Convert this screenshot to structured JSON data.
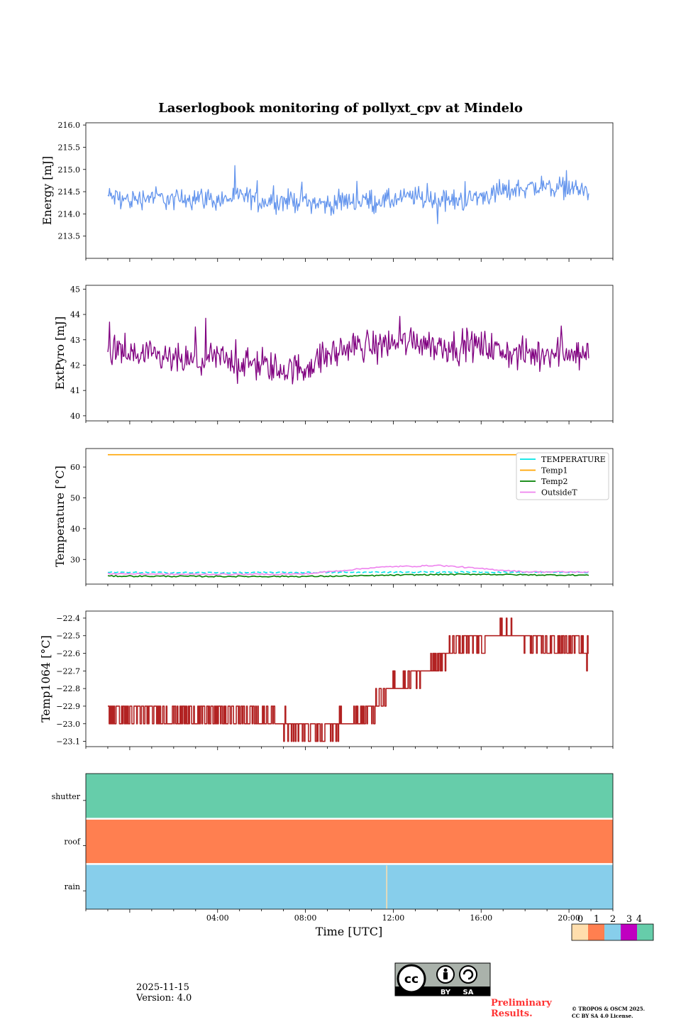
{
  "chart_data": {
    "type": "line",
    "title": "Laserlogbook monitoring of pollyxt_cpv at Mindelo",
    "xlabel": "Time [UTC]",
    "x_range_hours": [
      -2,
      22
    ],
    "x_tick_labels": [
      "04:00",
      "08:00",
      "12:00",
      "16:00",
      "20:00"
    ],
    "x_tick_hours": [
      4,
      8,
      12,
      16,
      20
    ],
    "panels": [
      {
        "id": "energy",
        "ylabel": "Energy [mJ]",
        "ylim": [
          213.0,
          216.05
        ],
        "yticks": [
          213.5,
          214.0,
          214.5,
          215.0,
          215.5,
          216.0
        ],
        "ytick_labels": [
          "213.5",
          "214.0",
          "214.5",
          "215.0",
          "215.5",
          "216.0"
        ],
        "series": [
          {
            "name": "Energy",
            "color": "#6495ed",
            "x": [
              -1.0,
              0,
              1,
              2,
              3,
              4,
              5,
              6,
              7,
              8,
              9,
              10,
              11,
              12,
              13,
              14,
              15,
              16,
              17,
              18,
              19,
              20,
              20.9
            ],
            "values": [
              214.4,
              214.3,
              214.4,
              214.3,
              214.4,
              214.3,
              214.4,
              214.3,
              214.3,
              214.3,
              214.2,
              214.3,
              214.3,
              214.3,
              214.4,
              214.3,
              214.3,
              214.4,
              214.5,
              214.6,
              214.6,
              214.6,
              214.5
            ],
            "noise_amplitude": 0.35
          }
        ]
      },
      {
        "id": "extpyro",
        "ylabel": "ExtPyro [mJ]",
        "ylim": [
          39.8,
          45.15
        ],
        "yticks": [
          40,
          41,
          42,
          43,
          44,
          45
        ],
        "ytick_labels": [
          "40",
          "41",
          "42",
          "43",
          "44",
          "45"
        ],
        "series": [
          {
            "name": "ExtPyro",
            "color": "#800080",
            "x": [
              -1.0,
              0,
              1,
              2,
              3,
              4,
              5,
              6,
              7,
              8,
              9,
              10,
              11,
              12,
              13,
              14,
              15,
              16,
              17,
              18,
              19,
              20,
              20.9
            ],
            "values": [
              42.6,
              42.4,
              42.3,
              42.2,
              42.1,
              42.3,
              42.1,
              42.0,
              41.8,
              41.9,
              42.4,
              42.7,
              42.8,
              42.9,
              43.0,
              42.8,
              42.7,
              42.8,
              42.5,
              42.4,
              42.5,
              42.6,
              42.4
            ],
            "noise_amplitude": 0.9
          }
        ]
      },
      {
        "id": "temperature",
        "ylabel": "Temperature [°C]",
        "ylim": [
          22,
          66
        ],
        "yticks": [
          30,
          40,
          50,
          60
        ],
        "ytick_labels": [
          "30",
          "40",
          "50",
          "60"
        ],
        "legend": [
          "TEMPERATURE",
          "Temp1",
          "Temp2",
          "OutsideT"
        ],
        "legend_position": "upper-right",
        "series": [
          {
            "name": "TEMPERATURE",
            "color": "#00e5e5",
            "dashed": true,
            "x": [
              -1.0,
              4,
              8,
              10,
              12,
              14,
              16,
              18,
              20.9
            ],
            "values": [
              25.8,
              25.7,
              25.8,
              25.8,
              25.9,
              25.9,
              25.9,
              25.8,
              25.8
            ]
          },
          {
            "name": "Temp1",
            "color": "#ffa500",
            "x": [
              -1.0,
              20.9
            ],
            "values": [
              64.0,
              64.0
            ]
          },
          {
            "name": "Temp2",
            "color": "#008000",
            "x": [
              -1.0,
              4,
              8,
              10,
              12,
              14,
              16,
              18,
              20.9
            ],
            "values": [
              24.6,
              24.5,
              24.5,
              24.6,
              24.9,
              25.1,
              25.2,
              25.0,
              24.9
            ]
          },
          {
            "name": "OutsideT",
            "color": "#ee82ee",
            "x": [
              -1.0,
              2,
              6,
              8,
              9,
              10,
              11,
              12,
              13,
              14,
              15,
              16,
              17,
              18,
              20.9
            ],
            "values": [
              25.4,
              25.2,
              25.2,
              25.3,
              26.0,
              26.6,
              27.3,
              27.7,
              27.8,
              28.1,
              27.6,
              27.0,
              26.5,
              26.0,
              25.9
            ]
          }
        ]
      },
      {
        "id": "temp1064",
        "ylabel": "Temp1064 [°C]",
        "ylim": [
          -23.13,
          -22.36
        ],
        "yticks": [
          -23.1,
          -23.0,
          -22.9,
          -22.8,
          -22.7,
          -22.6,
          -22.5,
          -22.4
        ],
        "ytick_labels": [
          "−23.1",
          "−23.0",
          "−22.9",
          "−22.8",
          "−22.7",
          "−22.6",
          "−22.5",
          "−22.4"
        ],
        "series": [
          {
            "name": "Temp1064",
            "color": "#b22222",
            "step": 0.1,
            "x": [
              -1.0,
              1,
              3,
              5,
              6,
              7,
              8,
              9,
              10,
              11,
              11.5,
              12,
              13,
              14,
              15,
              16,
              17,
              18,
              19,
              20,
              20.9
            ],
            "values": [
              -22.95,
              -22.95,
              -22.95,
              -22.95,
              -22.97,
              -23.0,
              -23.02,
              -23.02,
              -22.98,
              -22.93,
              -22.85,
              -22.8,
              -22.72,
              -22.65,
              -22.55,
              -22.52,
              -22.48,
              -22.52,
              -22.55,
              -22.55,
              -22.6
            ]
          }
        ]
      },
      {
        "id": "status",
        "type": "heatmap",
        "rows": [
          "shutter",
          "roof",
          "rain"
        ],
        "row_values": [
          4,
          1,
          2
        ],
        "row_colors": [
          "#66cdaa",
          "#ff7f50",
          "#87ceeb"
        ],
        "rain_marker_hour": 11.7
      }
    ],
    "colorbar": {
      "labels": [
        "0",
        "1",
        "2",
        "3",
        "4"
      ],
      "colors": [
        "#ffdead",
        "#ff7f50",
        "#87ceeb",
        "#c000c0",
        "#66cdaa"
      ]
    }
  },
  "footer": {
    "date": "2025-11-15",
    "version": "Version: 4.0",
    "preliminary_line1": "Preliminary",
    "preliminary_line2": "Results.",
    "copyright_line1": "© TROPOS & OSCM 2025.",
    "copyright_line2": "CC BY SA 4.0 License.",
    "license_badge": {
      "by": "BY",
      "sa": "SA",
      "cc": "cc"
    }
  }
}
